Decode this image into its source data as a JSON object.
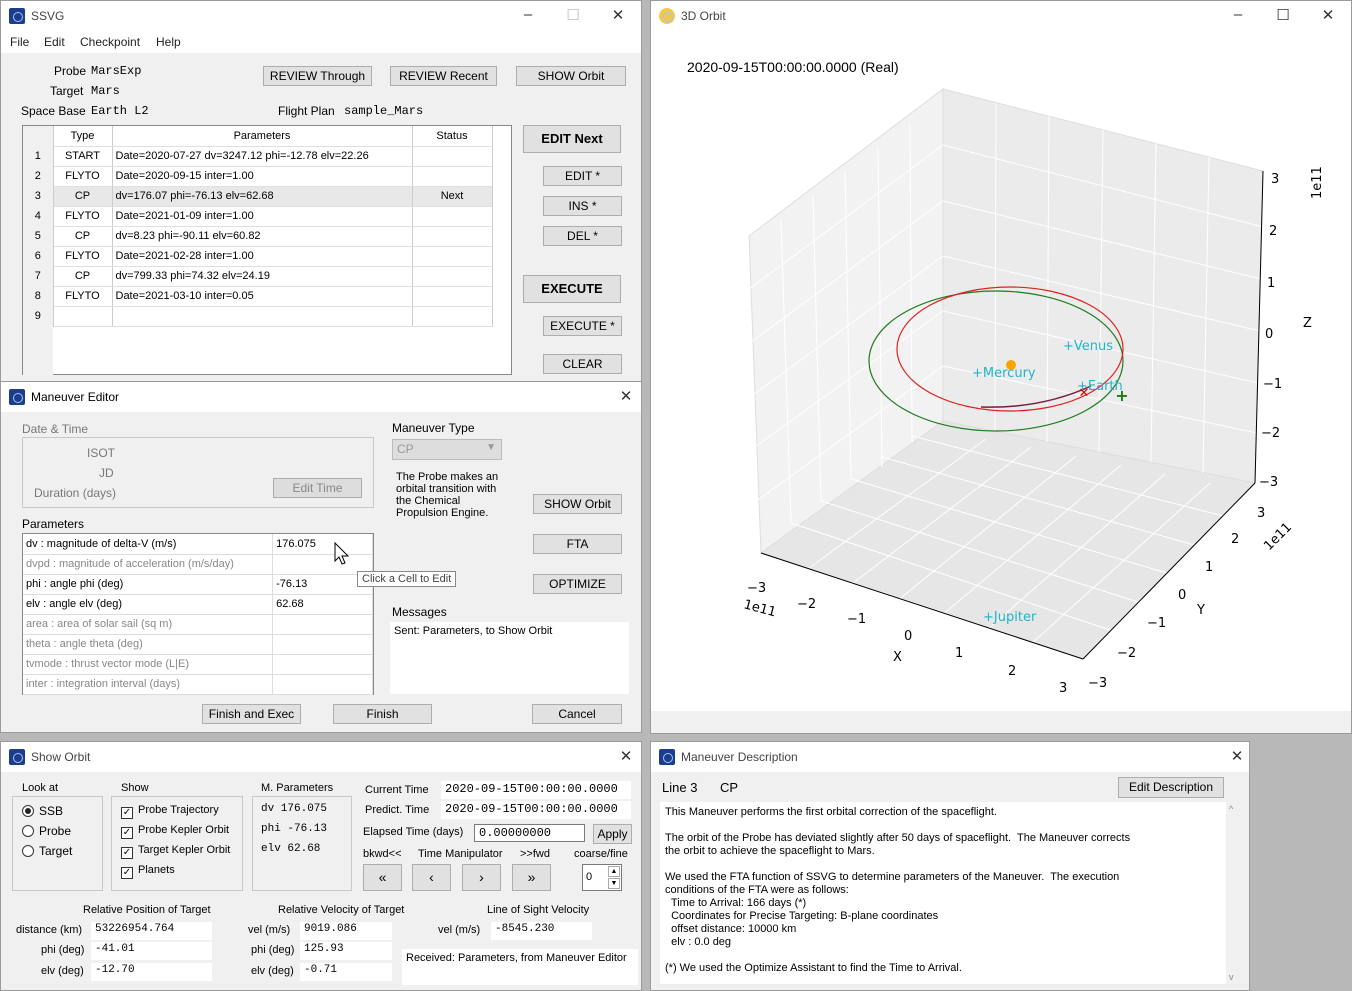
{
  "ssvg": {
    "title": "SSVG",
    "menu": [
      "File",
      "Edit",
      "Checkpoint",
      "Help"
    ],
    "probe_label": "Probe",
    "probe": "MarsExp",
    "target_label": "Target",
    "target": "Mars",
    "base_label": "Space Base",
    "base": "Earth L2",
    "plan_label": "Flight Plan",
    "plan": "sample_Mars",
    "btn_review_through": "REVIEW Through",
    "btn_review_recent": "REVIEW Recent",
    "btn_show_orbit": "SHOW Orbit",
    "btn_edit_next": "EDIT Next",
    "btn_edit": "EDIT *",
    "btn_ins": "INS *",
    "btn_del": "DEL *",
    "btn_execute": "EXECUTE",
    "btn_execute_star": "EXECUTE *",
    "btn_clear": "CLEAR",
    "headers": [
      "Type",
      "Parameters",
      "Status"
    ],
    "rows": [
      {
        "n": "1",
        "type": "START",
        "params": "Date=2020-07-27 dv=3247.12 phi=-12.78 elv=22.26",
        "status": ""
      },
      {
        "n": "2",
        "type": "FLYTO",
        "params": "Date=2020-09-15 inter=1.00",
        "status": ""
      },
      {
        "n": "3",
        "type": "CP",
        "params": "dv=176.07 phi=-76.13 elv=62.68",
        "status": "Next"
      },
      {
        "n": "4",
        "type": "FLYTO",
        "params": "Date=2021-01-09 inter=1.00",
        "status": ""
      },
      {
        "n": "5",
        "type": "CP",
        "params": "dv=8.23 phi=-90.11 elv=60.82",
        "status": ""
      },
      {
        "n": "6",
        "type": "FLYTO",
        "params": "Date=2021-02-28 inter=1.00",
        "status": ""
      },
      {
        "n": "7",
        "type": "CP",
        "params": "dv=799.33 phi=74.32 elv=24.19",
        "status": ""
      },
      {
        "n": "8",
        "type": "FLYTO",
        "params": "Date=2021-03-10 inter=0.05",
        "status": ""
      },
      {
        "n": "9",
        "type": "",
        "params": "",
        "status": ""
      }
    ]
  },
  "orbit": {
    "title": "3D Orbit",
    "timestamp": "2020-09-15T00:00:00.0000 (Real)",
    "z_ticks": [
      "3",
      "2",
      "1",
      "0",
      "−1",
      "−2",
      "−3"
    ],
    "z_label": "Z",
    "z_exp": "1e11",
    "y_ticks": [
      "3",
      "2",
      "1",
      "0",
      "−1",
      "−2",
      "−3"
    ],
    "y_label": "Y",
    "y_exp": "1e11",
    "x_ticks": [
      "−3",
      "−2",
      "−1",
      "0",
      "1",
      "2",
      "3"
    ],
    "x_label": "X",
    "x_exp": "1e11",
    "planets": [
      "Venus",
      "Mercury",
      "Earth",
      "Jupiter"
    ]
  },
  "editor": {
    "title": "Maneuver Editor",
    "date_time": "Date & Time",
    "isot": "ISOT",
    "jd": "JD",
    "duration": "Duration (days)",
    "edit_time": "Edit Time",
    "type_label": "Maneuver Type",
    "type_value": "CP",
    "description": "The Probe makes an orbital transition with the Chemical Propulsion Engine.",
    "params_label": "Parameters",
    "params": [
      {
        "name": "dv     : magnitude of delta-V (m/s)",
        "value": "176.075"
      },
      {
        "name": "dvpd  : magnitude of acceleration (m/s/day)",
        "value": ""
      },
      {
        "name": "phi    : angle phi (deg)",
        "value": "-76.13"
      },
      {
        "name": "elv    : angle elv (deg)",
        "value": "62.68"
      },
      {
        "name": "area   : area of solar sail (sq m)",
        "value": ""
      },
      {
        "name": "theta : angle theta (deg)",
        "value": ""
      },
      {
        "name": "tvmode : thrust vector mode (L|E)",
        "value": ""
      },
      {
        "name": "inter : integration interval (days)",
        "value": ""
      }
    ],
    "tooltip": "Click a Cell to Edit",
    "btn_show_orbit": "SHOW Orbit",
    "btn_fta": "FTA",
    "btn_optimize": "OPTIMIZE",
    "messages_label": "Messages",
    "message": "Sent: Parameters, to Show Orbit",
    "btn_finish_exec": "Finish and Exec",
    "btn_finish": "Finish",
    "btn_cancel": "Cancel"
  },
  "show": {
    "title": "Show Orbit",
    "look_label": "Look at",
    "look": [
      "SSB",
      "Probe",
      "Target"
    ],
    "show_label": "Show",
    "show_opts": [
      "Probe Trajectory",
      "Probe Kepler Orbit",
      "Target Kepler Orbit",
      "Planets"
    ],
    "mp_label": "M. Parameters",
    "dv": "dv  176.075",
    "phi": "phi  -76.13",
    "elv": "elv  62.68",
    "cur_time_label": "Current Time",
    "cur_time": "2020-09-15T00:00:00.0000",
    "pred_time_label": "Predict. Time",
    "pred_time": "2020-09-15T00:00:00.0000",
    "elapsed_label": "Elapsed Time (days)",
    "elapsed": "0.00000000",
    "apply": "Apply",
    "bkwd": "bkwd<<",
    "tm": "Time Manipulator",
    "fwd": ">>fwd",
    "coarse": "coarse/fine",
    "step": "0",
    "rp_label": "Relative Position of Target",
    "dist_label": "distance (km)",
    "dist": "53226954.764",
    "rp_phi_label": "phi (deg)",
    "rp_phi": "-41.01",
    "rp_elv_label": "elv (deg)",
    "rp_elv": "-12.70",
    "rv_label": "Relative Velocity of Target",
    "vel_label": "vel (m/s)",
    "vel": "9019.086",
    "rv_phi_label": "phi (deg)",
    "rv_phi": "125.93",
    "rv_elv_label": "elv (deg)",
    "rv_elv": "-0.71",
    "los_label": "Line of Sight Velocity",
    "los_vel_label": "vel (m/s)",
    "los_vel": "-8545.230",
    "received": "Received: Parameters, from Maneuver Editor"
  },
  "desc": {
    "title": "Maneuver Description",
    "line": "Line 3",
    "type": "CP",
    "btn_edit": "Edit Description",
    "text": "This Maneuver performs the first orbital correction of the spaceflight.\n\nThe orbit of the Probe has deviated slightly after 50 days of spaceflight.  The Maneuver corrects\nthe orbit to achieve the spaceflight to Mars.\n\nWe used the FTA function of SSVG to determine parameters of the Maneuver.  The execution\nconditions of the FTA were as follows:\n  Time to Arrival: 166 days (*)\n  Coordinates for Precise Targeting: B-plane coordinates\n  offset distance: 10000 km\n  elv : 0.0 deg\n\n(*) We used the Optimize Assistant to find the Time to Arrival."
  }
}
